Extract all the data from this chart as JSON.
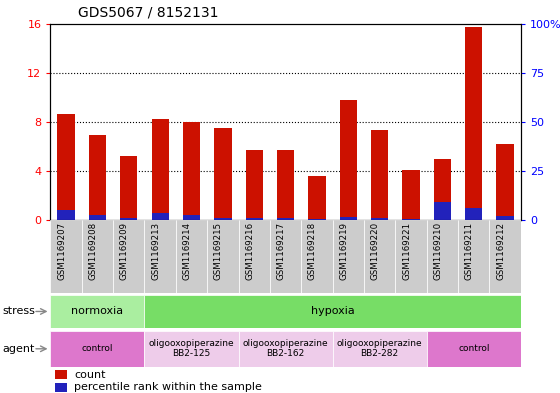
{
  "title": "GDS5067 / 8152131",
  "samples": [
    "GSM1169207",
    "GSM1169208",
    "GSM1169209",
    "GSM1169213",
    "GSM1169214",
    "GSM1169215",
    "GSM1169216",
    "GSM1169217",
    "GSM1169218",
    "GSM1169219",
    "GSM1169220",
    "GSM1169221",
    "GSM1169210",
    "GSM1169211",
    "GSM1169212"
  ],
  "count_values": [
    8.6,
    6.9,
    5.2,
    8.2,
    8.0,
    7.5,
    5.7,
    5.7,
    3.6,
    9.8,
    7.3,
    4.1,
    5.0,
    15.7,
    6.2
  ],
  "percentile_values": [
    5.0,
    2.5,
    1.0,
    3.5,
    2.5,
    1.0,
    1.3,
    1.0,
    0.6,
    1.6,
    1.3,
    0.6,
    9.4,
    6.25,
    1.9
  ],
  "ylim_left": [
    0,
    16
  ],
  "ylim_right": [
    0,
    100
  ],
  "yticks_left": [
    0,
    4,
    8,
    12,
    16
  ],
  "yticks_right": [
    0,
    25,
    50,
    75,
    100
  ],
  "ytick_labels_right": [
    "0",
    "25",
    "50",
    "75",
    "100%"
  ],
  "bar_color": "#CC1100",
  "percentile_color": "#2222BB",
  "grid_color": "black",
  "stress_groups": [
    {
      "label": "normoxia",
      "start": 0,
      "end": 3,
      "color": "#AAEEA0"
    },
    {
      "label": "hypoxia",
      "start": 3,
      "end": 15,
      "color": "#77DD66"
    }
  ],
  "agent_groups": [
    {
      "label": "control",
      "start": 0,
      "end": 3,
      "color": "#DD77CC"
    },
    {
      "label": "oligooxopiperazine\nBB2-125",
      "start": 3,
      "end": 6,
      "color": "#EECCEA"
    },
    {
      "label": "oligooxopiperazine\nBB2-162",
      "start": 6,
      "end": 9,
      "color": "#EECCEA"
    },
    {
      "label": "oligooxopiperazine\nBB2-282",
      "start": 9,
      "end": 12,
      "color": "#EECCEA"
    },
    {
      "label": "control",
      "start": 12,
      "end": 15,
      "color": "#DD77CC"
    }
  ],
  "legend_items": [
    {
      "label": "count",
      "color": "#CC1100"
    },
    {
      "label": "percentile rank within the sample",
      "color": "#2222BB"
    }
  ]
}
